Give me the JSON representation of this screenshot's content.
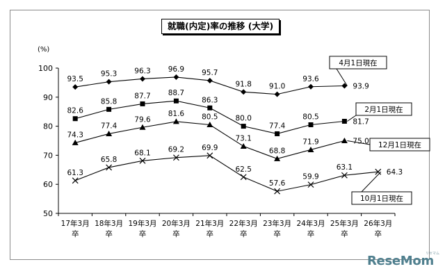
{
  "chart_data": {
    "type": "line",
    "title": "就職(内定)率の推移 (大学)",
    "ylabel": "(%)",
    "xlabel": "",
    "ylim": [
      50,
      100
    ],
    "yticks": [
      50,
      60,
      70,
      80,
      90,
      100
    ],
    "grid": false,
    "categories": [
      [
        "17年3月",
        "卒"
      ],
      [
        "18年3月",
        "卒"
      ],
      [
        "19年3月",
        "卒"
      ],
      [
        "20年3月",
        "卒"
      ],
      [
        "21年3月",
        "卒"
      ],
      [
        "22年3月",
        "卒"
      ],
      [
        "23年3月",
        "卒"
      ],
      [
        "24年3月",
        "卒"
      ],
      [
        "25年3月",
        "卒"
      ],
      [
        "26年3月",
        "卒"
      ]
    ],
    "series": [
      {
        "name": "4月1日現在",
        "marker": "diamond",
        "values": [
          93.5,
          95.3,
          96.3,
          96.9,
          95.7,
          91.8,
          91.0,
          93.6,
          93.9,
          null
        ],
        "labels": [
          "93.5",
          "95.3",
          "96.3",
          "96.9",
          "95.7",
          "91.8",
          "91.0",
          "93.6",
          "93.9",
          ""
        ]
      },
      {
        "name": "2月1日現在",
        "marker": "square",
        "values": [
          82.6,
          85.8,
          87.7,
          88.7,
          86.3,
          80.0,
          77.4,
          80.5,
          81.7,
          null
        ],
        "labels": [
          "82.6",
          "85.8",
          "87.7",
          "88.7",
          "86.3",
          "80.0",
          "77.4",
          "80.5",
          "81.7",
          ""
        ]
      },
      {
        "name": "12月1日現在",
        "marker": "triangle",
        "values": [
          74.3,
          77.4,
          79.6,
          81.6,
          80.5,
          73.1,
          68.8,
          71.9,
          75.0,
          null
        ],
        "labels": [
          "74.3",
          "77.4",
          "79.6",
          "81.6",
          "80.5",
          "73.1",
          "68.8",
          "71.9",
          "75.0",
          ""
        ]
      },
      {
        "name": "10月1日現在",
        "marker": "cross",
        "values": [
          61.3,
          65.8,
          68.1,
          69.2,
          69.9,
          62.5,
          57.6,
          59.9,
          63.1,
          64.3
        ],
        "labels": [
          "61.3",
          "65.8",
          "68.1",
          "69.2",
          "69.9",
          "62.5",
          "57.6",
          "59.9",
          "63.1",
          "64.3"
        ]
      }
    ]
  },
  "branding": {
    "logo_text": "ReseMom",
    "logo_sub": "リセマム",
    "logo_color": "#4f7f8e"
  }
}
